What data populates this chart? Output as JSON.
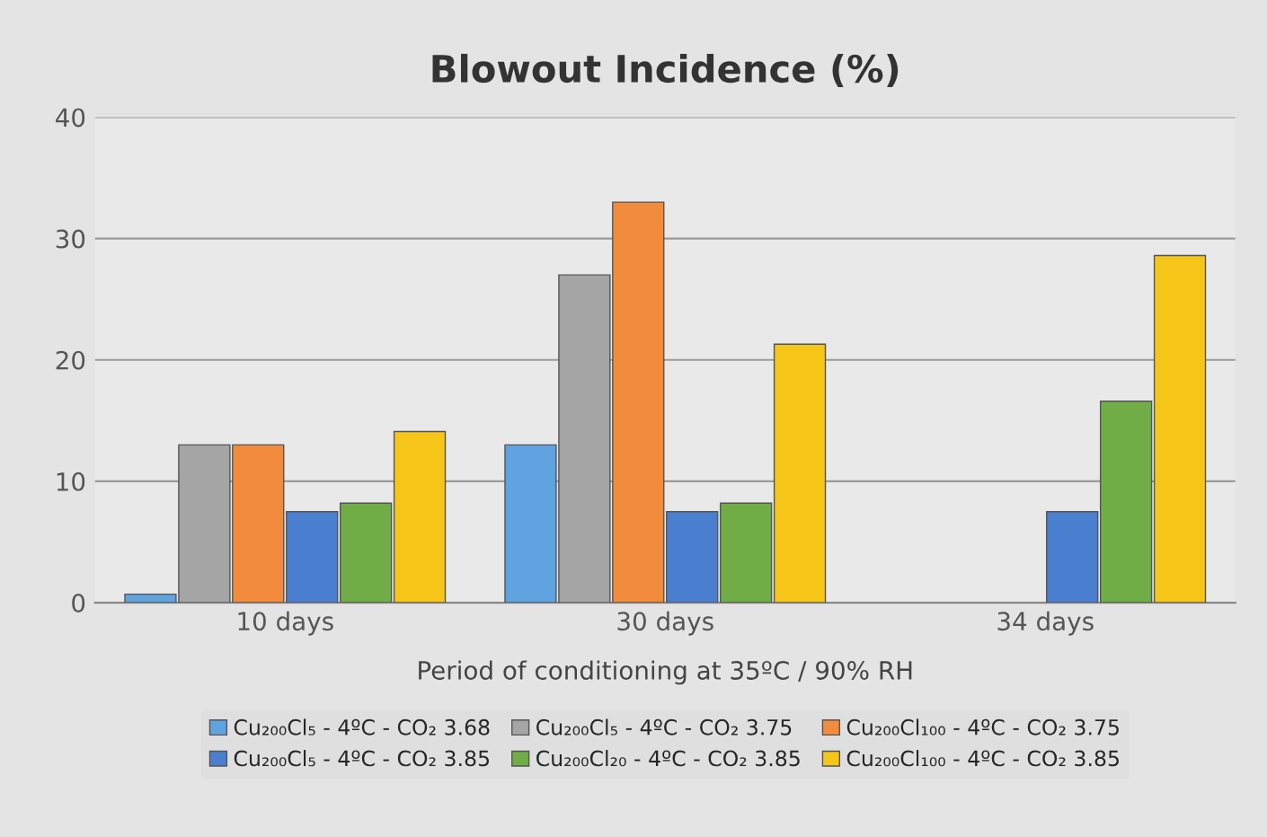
{
  "chart_data": {
    "type": "bar",
    "title": "Blowout Incidence (%)",
    "xlabel": "Period of conditioning at 35ºC / 90% RH",
    "categories": [
      "10 days",
      "30 days",
      "34 days"
    ],
    "series": [
      {
        "name": "Cu₂₀₀Cl₅ - 4ºC - CO₂ 3.68",
        "color": "#5fa3e0",
        "values": [
          0.7,
          13,
          null
        ]
      },
      {
        "name": "Cu₂₀₀Cl₅ - 4ºC - CO₂ 3.75",
        "color": "#a5a5a5",
        "values": [
          13,
          27,
          null
        ]
      },
      {
        "name": "Cu₂₀₀Cl₁₀₀ - 4ºC - CO₂ 3.75",
        "color": "#f28c3c",
        "values": [
          13,
          33,
          null
        ]
      },
      {
        "name": "Cu₂₀₀Cl₅ - 4ºC - CO₂ 3.85",
        "color": "#4a7fd0",
        "values": [
          7.5,
          7.5,
          7.5
        ]
      },
      {
        "name": "Cu₂₀₀Cl₂₀ - 4ºC - CO₂ 3.85",
        "color": "#70ad47",
        "values": [
          8.2,
          8.2,
          16.6
        ]
      },
      {
        "name": "Cu₂₀₀Cl₁₀₀ - 4ºC - CO₂ 3.85",
        "color": "#f5c518",
        "values": [
          14.1,
          21.3,
          28.6
        ]
      }
    ],
    "ylim": [
      0,
      40
    ],
    "yticks": [
      0,
      10,
      20,
      30,
      40
    ],
    "grid": "y",
    "legend": "bottom"
  }
}
